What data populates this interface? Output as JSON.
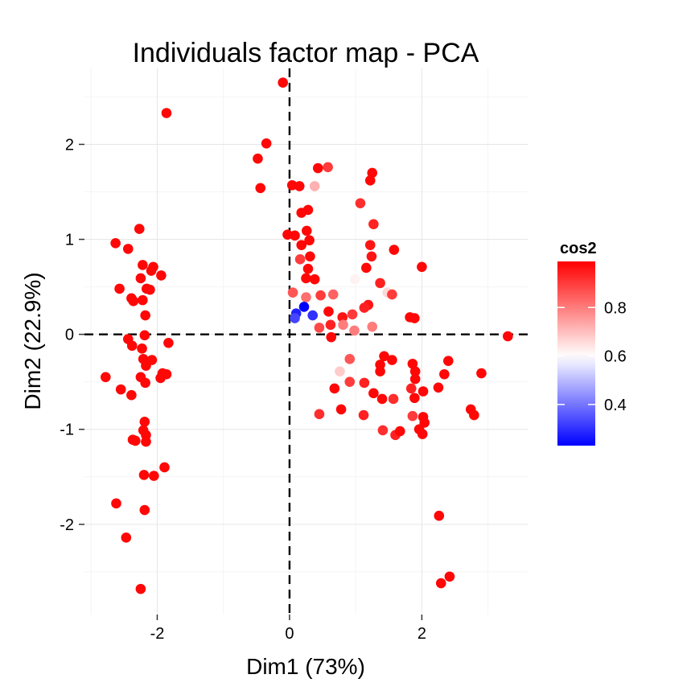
{
  "chart_data": {
    "type": "scatter",
    "title": "Individuals factor map - PCA",
    "xlabel": "Dim1 (73%)",
    "ylabel": "Dim2 (22.9%)",
    "xlim": [
      -3.1,
      3.6
    ],
    "ylim": [
      -2.95,
      2.8
    ],
    "x_ticks": [
      -2,
      0,
      2
    ],
    "x_tick_labels": [
      "-2",
      "0",
      "2"
    ],
    "y_ticks": [
      -2,
      -1,
      0,
      1,
      2
    ],
    "y_tick_labels": [
      "-2",
      "-1",
      "0",
      "1",
      "2"
    ],
    "reference_lines": {
      "x": 0,
      "y": 0,
      "style": "dashed"
    },
    "grid": true,
    "legend": {
      "title": "cos2",
      "placement": "right",
      "range": [
        0.23,
        0.99
      ],
      "ticks": [
        0.4,
        0.6,
        0.8
      ],
      "tick_labels": [
        "0.4",
        "0.6",
        "0.8"
      ],
      "low_color": "#0000ff",
      "mid_color": "#ffffff",
      "high_color": "#ff0000",
      "midpoint": 0.6
    },
    "color_variable": "cos2",
    "points": [
      {
        "x": -1.86,
        "y": 2.33,
        "cos2": 0.98
      },
      {
        "x": -2.27,
        "y": 1.11,
        "cos2": 0.98
      },
      {
        "x": -2.63,
        "y": 0.96,
        "cos2": 0.98
      },
      {
        "x": -2.44,
        "y": 0.9,
        "cos2": 0.98
      },
      {
        "x": -2.22,
        "y": 0.73,
        "cos2": 0.98
      },
      {
        "x": -2.06,
        "y": 0.71,
        "cos2": 0.98
      },
      {
        "x": -2.09,
        "y": 0.67,
        "cos2": 0.98
      },
      {
        "x": -2.25,
        "y": 0.59,
        "cos2": 0.98
      },
      {
        "x": -1.94,
        "y": 0.62,
        "cos2": 0.98
      },
      {
        "x": -2.57,
        "y": 0.48,
        "cos2": 0.98
      },
      {
        "x": -2.16,
        "y": 0.48,
        "cos2": 0.98
      },
      {
        "x": -2.11,
        "y": 0.47,
        "cos2": 0.98
      },
      {
        "x": -2.39,
        "y": 0.38,
        "cos2": 0.98
      },
      {
        "x": -2.36,
        "y": 0.35,
        "cos2": 0.98
      },
      {
        "x": -2.22,
        "y": 0.36,
        "cos2": 0.98
      },
      {
        "x": -2.18,
        "y": 0.2,
        "cos2": 0.98
      },
      {
        "x": -2.19,
        "y": -0.01,
        "cos2": 0.98
      },
      {
        "x": -2.44,
        "y": -0.05,
        "cos2": 0.98
      },
      {
        "x": -2.38,
        "y": -0.12,
        "cos2": 0.98
      },
      {
        "x": -2.23,
        "y": -0.15,
        "cos2": 0.98
      },
      {
        "x": -2.21,
        "y": -0.26,
        "cos2": 0.98
      },
      {
        "x": -2.17,
        "y": -0.33,
        "cos2": 0.98
      },
      {
        "x": -1.83,
        "y": -0.09,
        "cos2": 0.98
      },
      {
        "x": -2.08,
        "y": -0.27,
        "cos2": 0.98
      },
      {
        "x": -1.92,
        "y": -0.41,
        "cos2": 0.98
      },
      {
        "x": -1.86,
        "y": -0.42,
        "cos2": 0.98
      },
      {
        "x": -2.78,
        "y": -0.45,
        "cos2": 0.98
      },
      {
        "x": -2.25,
        "y": -0.45,
        "cos2": 0.98
      },
      {
        "x": -1.95,
        "y": -0.46,
        "cos2": 0.98
      },
      {
        "x": -2.18,
        "y": -0.51,
        "cos2": 0.98
      },
      {
        "x": -2.55,
        "y": -0.58,
        "cos2": 0.98
      },
      {
        "x": -2.39,
        "y": -0.64,
        "cos2": 0.98
      },
      {
        "x": -2.19,
        "y": -0.92,
        "cos2": 0.98
      },
      {
        "x": -2.21,
        "y": -1.01,
        "cos2": 0.98
      },
      {
        "x": -2.17,
        "y": -1.06,
        "cos2": 0.98
      },
      {
        "x": -2.37,
        "y": -1.11,
        "cos2": 0.98
      },
      {
        "x": -2.33,
        "y": -1.12,
        "cos2": 0.98
      },
      {
        "x": -2.17,
        "y": -1.13,
        "cos2": 0.98
      },
      {
        "x": -1.89,
        "y": -1.4,
        "cos2": 0.98
      },
      {
        "x": -2.2,
        "y": -1.48,
        "cos2": 0.98
      },
      {
        "x": -2.05,
        "y": -1.49,
        "cos2": 0.98
      },
      {
        "x": -2.62,
        "y": -1.78,
        "cos2": 0.98
      },
      {
        "x": -2.19,
        "y": -1.85,
        "cos2": 0.98
      },
      {
        "x": -2.47,
        "y": -2.14,
        "cos2": 0.98
      },
      {
        "x": -2.25,
        "y": -2.68,
        "cos2": 0.98
      },
      {
        "x": -0.1,
        "y": 2.65,
        "cos2": 0.98
      },
      {
        "x": -0.35,
        "y": 2.01,
        "cos2": 0.98
      },
      {
        "x": -0.48,
        "y": 1.85,
        "cos2": 0.98
      },
      {
        "x": -0.44,
        "y": 1.54,
        "cos2": 0.98
      },
      {
        "x": 0.04,
        "y": 1.57,
        "cos2": 0.98
      },
      {
        "x": 0.15,
        "y": 1.56,
        "cos2": 0.98
      },
      {
        "x": 0.08,
        "y": 1.04,
        "cos2": 0.98
      },
      {
        "x": -0.03,
        "y": 1.05,
        "cos2": 0.98
      },
      {
        "x": 0.43,
        "y": 1.75,
        "cos2": 0.98
      },
      {
        "x": 0.58,
        "y": 1.76,
        "cos2": 0.9
      },
      {
        "x": 0.38,
        "y": 1.56,
        "cos2": 0.72
      },
      {
        "x": 0.28,
        "y": 1.31,
        "cos2": 0.98
      },
      {
        "x": 0.18,
        "y": 1.28,
        "cos2": 0.98
      },
      {
        "x": 0.26,
        "y": 1.09,
        "cos2": 0.98
      },
      {
        "x": 0.3,
        "y": 0.99,
        "cos2": 0.98
      },
      {
        "x": 0.18,
        "y": 0.94,
        "cos2": 0.98
      },
      {
        "x": 0.31,
        "y": 0.82,
        "cos2": 0.98
      },
      {
        "x": 0.16,
        "y": 0.79,
        "cos2": 0.9
      },
      {
        "x": 0.28,
        "y": 0.69,
        "cos2": 0.98
      },
      {
        "x": 0.25,
        "y": 0.59,
        "cos2": 0.98
      },
      {
        "x": 0.38,
        "y": 0.58,
        "cos2": 0.98
      },
      {
        "x": 0.05,
        "y": 0.44,
        "cos2": 0.86
      },
      {
        "x": 0.25,
        "y": 0.39,
        "cos2": 0.82
      },
      {
        "x": 0.47,
        "y": 0.41,
        "cos2": 0.9
      },
      {
        "x": 0.66,
        "y": 0.42,
        "cos2": 0.84
      },
      {
        "x": 0.22,
        "y": 0.29,
        "cos2": 0.23
      },
      {
        "x": 0.1,
        "y": 0.22,
        "cos2": 0.28
      },
      {
        "x": 0.08,
        "y": 0.17,
        "cos2": 0.33
      },
      {
        "x": 0.35,
        "y": 0.2,
        "cos2": 0.3
      },
      {
        "x": 0.59,
        "y": 0.24,
        "cos2": 0.98
      },
      {
        "x": 0.45,
        "y": 0.07,
        "cos2": 0.88
      },
      {
        "x": 0.62,
        "y": 0.1,
        "cos2": 0.94
      },
      {
        "x": 0.8,
        "y": 0.18,
        "cos2": 0.96
      },
      {
        "x": 0.63,
        "y": -0.03,
        "cos2": 0.98
      },
      {
        "x": 0.81,
        "y": 0.1,
        "cos2": 0.8
      },
      {
        "x": 1.07,
        "y": 1.38,
        "cos2": 0.92
      },
      {
        "x": 1.25,
        "y": 1.7,
        "cos2": 0.98
      },
      {
        "x": 1.22,
        "y": 1.62,
        "cos2": 0.98
      },
      {
        "x": 1.27,
        "y": 1.16,
        "cos2": 0.94
      },
      {
        "x": 1.22,
        "y": 0.94,
        "cos2": 0.96
      },
      {
        "x": 1.24,
        "y": 0.82,
        "cos2": 0.96
      },
      {
        "x": 1.58,
        "y": 0.89,
        "cos2": 0.98
      },
      {
        "x": 2.0,
        "y": 0.71,
        "cos2": 0.98
      },
      {
        "x": 1.16,
        "y": 0.7,
        "cos2": 0.98
      },
      {
        "x": 0.99,
        "y": 0.58,
        "cos2": 0.62
      },
      {
        "x": 1.37,
        "y": 0.54,
        "cos2": 0.94
      },
      {
        "x": 1.48,
        "y": 0.44,
        "cos2": 0.66
      },
      {
        "x": 1.55,
        "y": 0.42,
        "cos2": 0.9
      },
      {
        "x": 1.19,
        "y": 0.31,
        "cos2": 0.96
      },
      {
        "x": 1.13,
        "y": 0.28,
        "cos2": 0.94
      },
      {
        "x": 0.95,
        "y": 0.21,
        "cos2": 0.9
      },
      {
        "x": 1.82,
        "y": 0.18,
        "cos2": 0.98
      },
      {
        "x": 1.89,
        "y": 0.17,
        "cos2": 0.98
      },
      {
        "x": 0.98,
        "y": 0.04,
        "cos2": 0.8
      },
      {
        "x": 1.25,
        "y": 0.08,
        "cos2": 0.8
      },
      {
        "x": 0.91,
        "y": -0.26,
        "cos2": 0.86
      },
      {
        "x": 1.43,
        "y": -0.23,
        "cos2": 0.98
      },
      {
        "x": 1.55,
        "y": -0.27,
        "cos2": 0.98
      },
      {
        "x": 1.37,
        "y": -0.32,
        "cos2": 0.98
      },
      {
        "x": 1.37,
        "y": -0.39,
        "cos2": 0.98
      },
      {
        "x": 0.76,
        "y": -0.39,
        "cos2": 0.68
      },
      {
        "x": 0.91,
        "y": -0.5,
        "cos2": 0.9
      },
      {
        "x": 1.13,
        "y": -0.51,
        "cos2": 0.94
      },
      {
        "x": 1.86,
        "y": -0.31,
        "cos2": 0.98
      },
      {
        "x": 1.9,
        "y": -0.39,
        "cos2": 0.98
      },
      {
        "x": 1.9,
        "y": -0.47,
        "cos2": 0.98
      },
      {
        "x": 2.4,
        "y": -0.28,
        "cos2": 0.98
      },
      {
        "x": 2.34,
        "y": -0.42,
        "cos2": 0.98
      },
      {
        "x": 2.9,
        "y": -0.41,
        "cos2": 0.98
      },
      {
        "x": 0.68,
        "y": -0.57,
        "cos2": 0.98
      },
      {
        "x": 1.27,
        "y": -0.62,
        "cos2": 0.98
      },
      {
        "x": 1.57,
        "y": -0.68,
        "cos2": 0.92
      },
      {
        "x": 1.4,
        "y": -0.68,
        "cos2": 0.98
      },
      {
        "x": 1.84,
        "y": -0.57,
        "cos2": 0.94
      },
      {
        "x": 1.89,
        "y": -0.67,
        "cos2": 0.98
      },
      {
        "x": 2.02,
        "y": -0.6,
        "cos2": 0.98
      },
      {
        "x": 2.25,
        "y": -0.56,
        "cos2": 0.98
      },
      {
        "x": 0.78,
        "y": -0.79,
        "cos2": 0.98
      },
      {
        "x": 0.45,
        "y": -0.84,
        "cos2": 0.92
      },
      {
        "x": 1.12,
        "y": -0.85,
        "cos2": 0.94
      },
      {
        "x": 2.02,
        "y": -0.87,
        "cos2": 0.98
      },
      {
        "x": 1.86,
        "y": -0.86,
        "cos2": 0.9
      },
      {
        "x": 2.74,
        "y": -0.79,
        "cos2": 0.98
      },
      {
        "x": 2.79,
        "y": -0.85,
        "cos2": 0.98
      },
      {
        "x": 2.04,
        "y": -0.93,
        "cos2": 0.98
      },
      {
        "x": 1.41,
        "y": -1.01,
        "cos2": 0.92
      },
      {
        "x": 1.6,
        "y": -1.06,
        "cos2": 0.94
      },
      {
        "x": 1.67,
        "y": -1.02,
        "cos2": 0.98
      },
      {
        "x": 1.96,
        "y": -1.0,
        "cos2": 0.98
      },
      {
        "x": 2.01,
        "y": -1.05,
        "cos2": 0.98
      },
      {
        "x": 3.3,
        "y": -0.02,
        "cos2": 0.98
      },
      {
        "x": 2.26,
        "y": -1.91,
        "cos2": 0.98
      },
      {
        "x": 2.42,
        "y": -2.55,
        "cos2": 0.98
      },
      {
        "x": 2.29,
        "y": -2.62,
        "cos2": 0.98
      }
    ]
  }
}
